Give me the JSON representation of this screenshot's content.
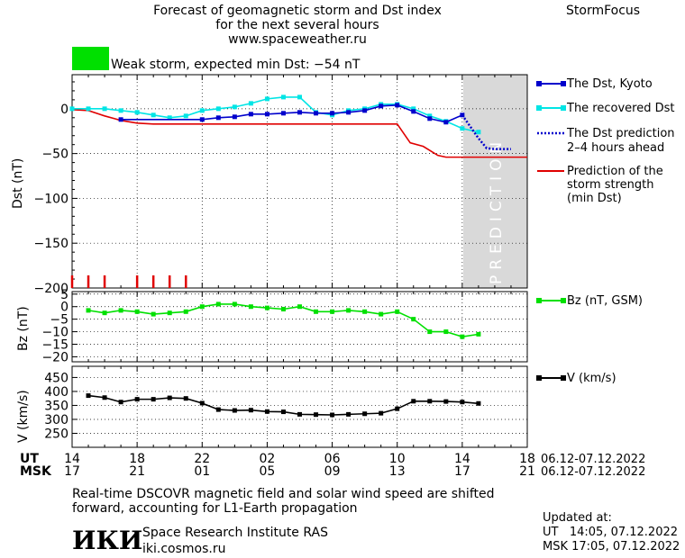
{
  "header": {
    "title_lines": [
      "Forecast of geomagnetic storm and Dst index",
      "for the next several hours",
      "www.spaceweather.ru"
    ],
    "brand": "StormFocus",
    "storm_badge": {
      "text": "Weak storm, expected min Dst: -54 nT",
      "color": "#00e000"
    }
  },
  "legend": {
    "dst_kyoto": "The Dst, Kyoto",
    "dst_recovered": "The recovered Dst",
    "dst_prediction": [
      "The Dst prediction",
      "2-4 hours ahead"
    ],
    "storm_strength": [
      "Prediction of the",
      "storm strength",
      "(min Dst)"
    ],
    "bz": "Bz (nT, GSM)",
    "v": "V (km/s)"
  },
  "axes": {
    "time_rows": [
      {
        "label": "UT",
        "ticks": [
          "14",
          "18",
          "22",
          "02",
          "06",
          "10",
          "14",
          "18"
        ],
        "range": "06.12-07.12.2022"
      },
      {
        "label": "MSK",
        "ticks": [
          "17",
          "21",
          "01",
          "05",
          "09",
          "13",
          "17",
          "21"
        ],
        "range": "06.12-07.12.2022"
      }
    ],
    "prediction_label": "PREDICTION"
  },
  "footer": {
    "note_lines": [
      "Real-time DSCOVR magnetic field and solar wind speed are shifted",
      "forward, accounting for L1-Earth propagation"
    ],
    "logo": "ИКИ",
    "institute": "Space Research Institute RAS",
    "site": "iki.cosmos.ru",
    "updated_label": "Updated at:",
    "updated_ut": "UT   14:05, 07.12.2022",
    "updated_msk": "MSK 17:05, 07.12.2022"
  },
  "colors": {
    "kyoto": "#0000cc",
    "recovered": "#00e5e5",
    "prediction": "#0000cc",
    "strength": "#e00000",
    "bz": "#00e000",
    "v": "#000000",
    "shade": "#d9d9d9"
  },
  "chart_data": [
    {
      "type": "line",
      "xlabel": "",
      "ylabel": "Dst (nT)",
      "x_unit": "hours UT from 06.12 14:00",
      "xlim": [
        0,
        28
      ],
      "ylim": [
        -200,
        38
      ],
      "yticks": [
        0,
        -50,
        -100,
        -150,
        -200
      ],
      "prediction_start": 24,
      "series": [
        {
          "name": "The Dst, Kyoto",
          "x": [
            3,
            8,
            9,
            10,
            11,
            12,
            13,
            14,
            15,
            16,
            17,
            18,
            19,
            20,
            21,
            22,
            23,
            24
          ],
          "y": [
            -12,
            -12,
            -10,
            -9,
            -6,
            -6,
            -5,
            -4,
            -5,
            -5,
            -4,
            -2,
            3,
            4,
            -3,
            -11,
            -15,
            -7
          ]
        },
        {
          "name": "The recovered Dst",
          "x": [
            0,
            1,
            2,
            3,
            4,
            5,
            6,
            7,
            8,
            9,
            10,
            11,
            12,
            13,
            14,
            15,
            16,
            17,
            18,
            19,
            20,
            21,
            22,
            23,
            24,
            25
          ],
          "y": [
            0,
            0,
            0,
            -2,
            -4,
            -7,
            -10,
            -8,
            -2,
            0,
            2,
            6,
            11,
            13,
            13,
            -4,
            -7,
            -2,
            0,
            5,
            5,
            0,
            -8,
            -14,
            -22,
            -26
          ]
        },
        {
          "name": "The Dst prediction 2-4 hours ahead",
          "x": [
            24,
            24.5,
            25,
            25.5,
            26,
            26.5,
            27
          ],
          "y": [
            -7,
            -20,
            -33,
            -44,
            -45,
            -45,
            -45
          ]
        },
        {
          "name": "Prediction of the storm strength (min Dst)",
          "x": [
            0,
            1,
            2,
            3,
            4,
            5,
            6,
            7,
            8,
            9,
            10,
            11,
            12,
            13,
            14,
            15,
            16,
            17,
            18,
            19,
            20,
            20.8,
            21.6,
            22.5,
            23,
            24,
            25,
            26,
            27,
            28
          ],
          "y": [
            -1,
            -2,
            -8,
            -13,
            -16,
            -17,
            -17,
            -17,
            -17,
            -17,
            -17,
            -17,
            -17,
            -17,
            -17,
            -17,
            -17,
            -17,
            -17,
            -17,
            -17,
            -38,
            -42,
            -52,
            -54,
            -54,
            -54,
            -54,
            -54,
            -54
          ]
        }
      ],
      "storm_marks_x": [
        0,
        1,
        2,
        4,
        5,
        6,
        7
      ]
    },
    {
      "type": "line",
      "ylabel": "Bz (nT)",
      "xlim": [
        0,
        28
      ],
      "ylim": [
        -22,
        6
      ],
      "yticks": [
        5,
        0,
        -5,
        -10,
        -15,
        -20
      ],
      "series": [
        {
          "name": "Bz (nT, GSM)",
          "x": [
            1,
            2,
            3,
            4,
            5,
            6,
            7,
            8,
            9,
            10,
            11,
            12,
            13,
            14,
            15,
            16,
            17,
            18,
            19,
            20,
            21,
            22,
            23,
            24,
            25
          ],
          "y": [
            -1.5,
            -2.5,
            -1.5,
            -2,
            -3,
            -2.5,
            -2,
            0,
            1,
            1,
            0,
            -0.5,
            -1,
            0,
            -2,
            -2,
            -1.5,
            -2,
            -3,
            -2,
            -5,
            -10,
            -10,
            -12,
            -11
          ]
        }
      ]
    },
    {
      "type": "line",
      "ylabel": "V (km/s)",
      "xlim": [
        0,
        28
      ],
      "ylim": [
        200,
        490
      ],
      "yticks": [
        450,
        400,
        350,
        300,
        250
      ],
      "series": [
        {
          "name": "V (km/s)",
          "x": [
            1,
            2,
            3,
            4,
            5,
            6,
            7,
            8,
            9,
            10,
            11,
            12,
            13,
            14,
            15,
            16,
            17,
            18,
            19,
            20,
            21,
            22,
            23,
            24,
            25
          ],
          "y": [
            385,
            378,
            362,
            372,
            372,
            377,
            375,
            358,
            335,
            332,
            333,
            328,
            327,
            318,
            317,
            316,
            318,
            320,
            322,
            338,
            365,
            365,
            364,
            362,
            357
          ]
        }
      ]
    }
  ]
}
